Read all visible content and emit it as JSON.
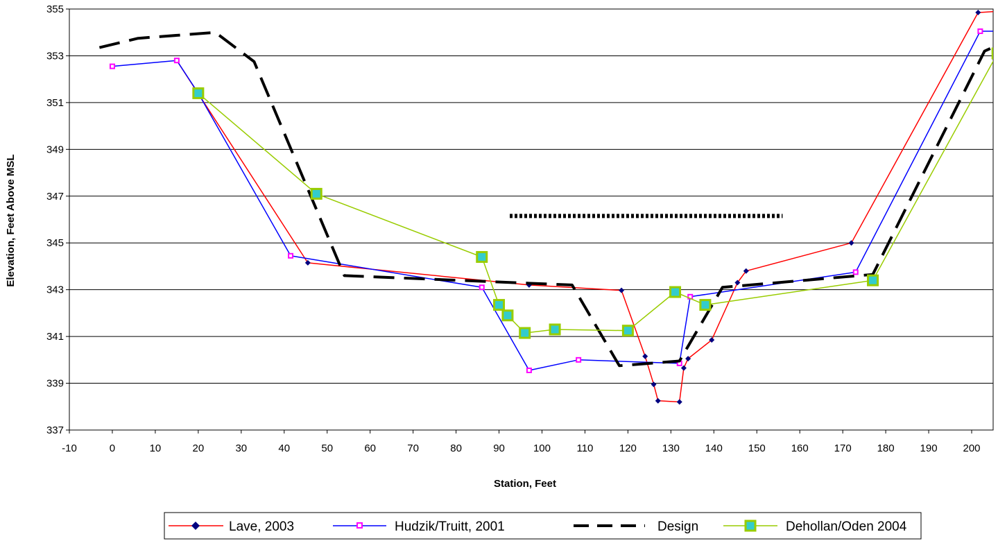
{
  "chart_data": {
    "type": "line",
    "title": "",
    "xlabel": "Station, Feet",
    "ylabel": "Elevation, Feet Above MSL",
    "xlim": [
      -10,
      205
    ],
    "ylim": [
      337,
      355
    ],
    "x_ticks": [
      "-10",
      "0",
      "10",
      "20",
      "30",
      "40",
      "50",
      "60",
      "70",
      "80",
      "90",
      "100",
      "110",
      "120",
      "130",
      "140",
      "150",
      "160",
      "170",
      "180",
      "190",
      "200"
    ],
    "y_ticks": [
      "337",
      "339",
      "341",
      "343",
      "345",
      "347",
      "349",
      "351",
      "353",
      "355"
    ],
    "grid": "horizontal",
    "legend_position": "bottom",
    "series": [
      {
        "name": "Lave, 2003",
        "color": "#ff0000",
        "marker": "diamond",
        "marker_color": "#000080",
        "x": [
          15,
          45.5,
          97,
          118.5,
          124,
          126,
          127,
          132,
          133,
          134,
          139.5,
          145.5,
          147.5,
          172,
          201.5,
          206
        ],
        "y": [
          352.8,
          344.15,
          343.2,
          342.97,
          340.15,
          338.95,
          338.25,
          338.2,
          339.65,
          340.05,
          340.85,
          343.3,
          343.8,
          345.0,
          354.85,
          354.9
        ]
      },
      {
        "name": "Hudzik/Truitt, 2001",
        "color": "#0000ff",
        "marker": "square",
        "marker_color": "#ff00ff",
        "x": [
          0,
          15,
          20,
          41.5,
          86,
          97,
          108.5,
          132,
          134.5,
          173,
          202,
          206
        ],
        "y": [
          352.55,
          352.8,
          351.4,
          344.45,
          343.1,
          339.55,
          340.0,
          339.85,
          342.7,
          343.75,
          354.05,
          354.05
        ]
      },
      {
        "name": "Design",
        "color": "#000000",
        "line_style": "dashed",
        "marker": "none",
        "x": [
          -3,
          6,
          24,
          33,
          54,
          107,
          118,
          132,
          142,
          177,
          203,
          206
        ],
        "y": [
          353.35,
          353.75,
          354.0,
          352.75,
          343.6,
          343.2,
          339.75,
          339.95,
          343.1,
          343.65,
          353.2,
          353.45
        ]
      },
      {
        "name": "Dehollan/Oden 2004",
        "color": "#99cc00",
        "marker": "square",
        "marker_color": "#99cc00",
        "marker_inner": "#33cccc",
        "x": [
          20,
          47.5,
          86,
          90,
          92,
          96,
          103,
          120,
          131,
          138,
          177,
          206
        ],
        "y": [
          351.4,
          347.1,
          344.4,
          342.35,
          341.9,
          341.15,
          341.3,
          341.25,
          342.9,
          342.35,
          343.4,
          353.1
        ]
      },
      {
        "name": "",
        "color": "#000000",
        "line_style": "dotted-thick",
        "marker": "none",
        "x": [
          92.5,
          156
        ],
        "y": [
          346.15,
          346.15
        ]
      }
    ]
  }
}
